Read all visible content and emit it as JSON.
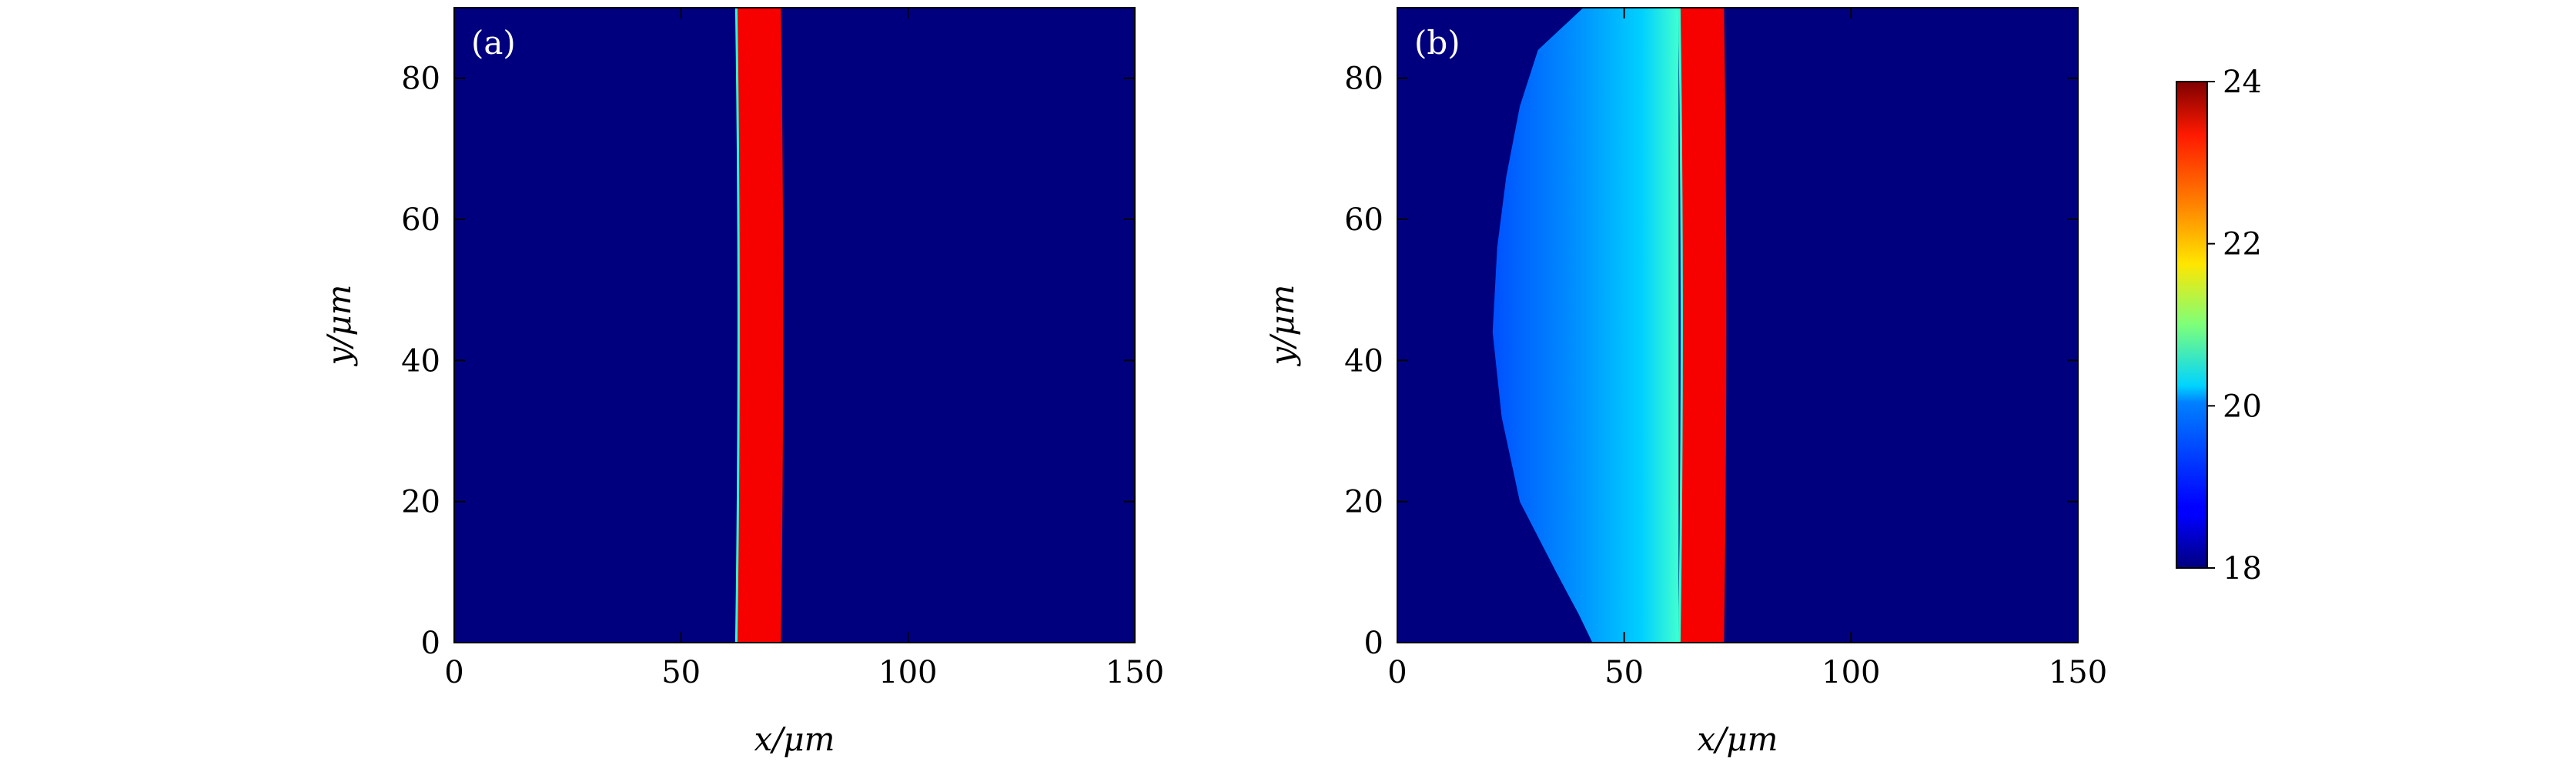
{
  "chart_data": [
    {
      "type": "heatmap",
      "panel_label": "(a)",
      "xlabel": "x/μm",
      "ylabel": "y/μm",
      "xlim": [
        0,
        150
      ],
      "ylim": [
        0,
        90
      ],
      "xticks": [
        "0",
        "50",
        "100",
        "150"
      ],
      "yticks": [
        "0",
        "20",
        "40",
        "60",
        "80"
      ],
      "background_value": 18,
      "band": {
        "x_start": 62,
        "x_end": 72,
        "value": 23.3,
        "edge_value": 20.5
      },
      "region": null
    },
    {
      "type": "heatmap",
      "panel_label": "(b)",
      "xlabel": "x/μm",
      "ylabel": "y/μm",
      "xlim": [
        0,
        150
      ],
      "ylim": [
        0,
        90
      ],
      "xticks": [
        "0",
        "50",
        "100",
        "150"
      ],
      "yticks": [
        "0",
        "20",
        "40",
        "60",
        "80"
      ],
      "background_value": 18,
      "band": {
        "x_start": 62,
        "x_end": 72,
        "value": 23.3,
        "edge_value": 20.5
      },
      "region": {
        "description_values": "heated zone left of band, 19 at left edge rising to 20.5 near band",
        "min_value": 19,
        "max_value": 20.6,
        "left_boundary": [
          {
            "y": 0,
            "x": 43
          },
          {
            "y": 4,
            "x": 40
          },
          {
            "y": 10,
            "x": 35
          },
          {
            "y": 20,
            "x": 27
          },
          {
            "y": 32,
            "x": 23
          },
          {
            "y": 44,
            "x": 21
          },
          {
            "y": 56,
            "x": 22
          },
          {
            "y": 66,
            "x": 24
          },
          {
            "y": 76,
            "x": 27
          },
          {
            "y": 84,
            "x": 31
          },
          {
            "y": 90,
            "x": 41
          }
        ]
      }
    }
  ],
  "colorbar": {
    "min": 18,
    "max": 24,
    "ticks": [
      "18",
      "20",
      "22",
      "24"
    ],
    "colormap": "jet"
  }
}
